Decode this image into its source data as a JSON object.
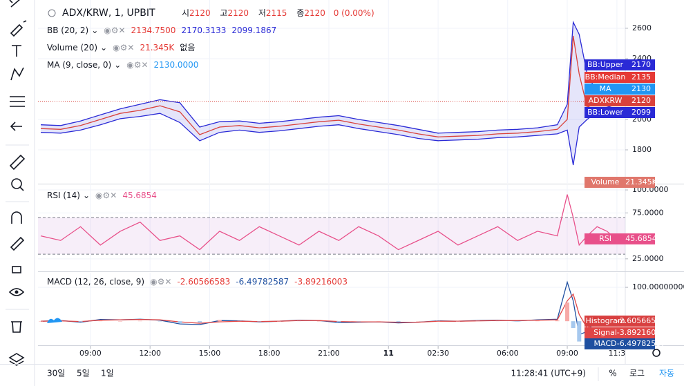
{
  "header": {
    "symbol": "ADX/KRW, 1, UPBIT",
    "ohlc": [
      {
        "label": "시",
        "value": "2120"
      },
      {
        "label": "고",
        "value": "2120"
      },
      {
        "label": "저",
        "value": "2115"
      },
      {
        "label": "종",
        "value": "2120"
      }
    ],
    "change": "0 (0.00%)"
  },
  "legends": {
    "bb": {
      "name": "BB (20, 2)",
      "values": [
        "2134.7500",
        "2170.3133",
        "2099.1867"
      ]
    },
    "volume": {
      "name": "Volume (20)",
      "values": [
        "21.345K",
        "없음"
      ]
    },
    "ma": {
      "name": "MA (9, close, 0)",
      "values": [
        "2130.0000"
      ]
    },
    "rsi": {
      "name": "RSI (14)",
      "values": [
        "45.6854"
      ]
    },
    "macd": {
      "name": "MACD (12, 26, close, 9)",
      "values": [
        "-2.60566583",
        "-6.49782587",
        "-3.89216003"
      ]
    }
  },
  "price_labels": [
    {
      "name": "BB:Median",
      "value": "2135",
      "color": "#e53935"
    },
    {
      "name": "MA",
      "value": "2130",
      "color": "#2196f3"
    },
    {
      "name": "Volume",
      "value": "21.345K",
      "color": "#e0776c"
    }
  ],
  "bottom_bar": {
    "ranges": [
      "30일",
      "5일",
      "1일"
    ],
    "clock": "11:28:41 (UTC+9)",
    "options": [
      "%",
      "로그",
      "자동"
    ]
  },
  "chart_data": [
    {
      "type": "line",
      "x": [
        6.5,
        7.5,
        8.5,
        9.5,
        10.5,
        11.5,
        12.5,
        13.5,
        14.5,
        15.5,
        16.5,
        17.5,
        18.5,
        19.5,
        20.5,
        21.5,
        22.5,
        23.5,
        24.5,
        25.5,
        26.5,
        27.5,
        28.5,
        29.5,
        30.5,
        31.5,
        32.5,
        33.0,
        33.3,
        33.6,
        34.0,
        34.5,
        35.0,
        35.5
      ],
      "series": [
        {
          "name": "BB:Upper",
          "color": "#2a2ad6",
          "values": [
            1965,
            1960,
            1990,
            2030,
            2070,
            2100,
            2130,
            2110,
            1950,
            1985,
            1990,
            1975,
            1985,
            2000,
            2015,
            2025,
            2000,
            1980,
            1960,
            1935,
            1910,
            1915,
            1920,
            1930,
            1935,
            1945,
            1965,
            2100,
            2640,
            2560,
            2300,
            2180,
            2170,
            2170
          ]
        },
        {
          "name": "BB:Lower",
          "color": "#2a2ad6",
          "values": [
            1915,
            1910,
            1930,
            1965,
            2005,
            2020,
            2040,
            1980,
            1860,
            1915,
            1930,
            1915,
            1925,
            1940,
            1955,
            1965,
            1940,
            1920,
            1900,
            1875,
            1860,
            1865,
            1870,
            1880,
            1885,
            1895,
            1905,
            1930,
            1700,
            1950,
            2000,
            2050,
            2080,
            2099
          ]
        },
        {
          "name": "ADXKRW",
          "color": "#d9413b",
          "values": [
            1940,
            1935,
            1960,
            2000,
            2040,
            2060,
            2090,
            2050,
            1900,
            1950,
            1960,
            1945,
            1955,
            1970,
            1985,
            1995,
            1970,
            1950,
            1930,
            1905,
            1885,
            1890,
            1895,
            1905,
            1910,
            1920,
            1935,
            2000,
            2550,
            2300,
            2080,
            2110,
            2100,
            2120
          ]
        }
      ],
      "fill_between": [
        0,
        1
      ],
      "price_line": 2,
      "xlim": [
        6.36,
        35.92
      ],
      "ylim": [
        1582,
        2786
      ],
      "yticks": [
        1800,
        2000,
        2400,
        2600
      ]
    },
    {
      "type": "line",
      "x": [
        6.5,
        7.5,
        8.5,
        9.5,
        10.5,
        11.5,
        12.5,
        13.5,
        14.5,
        15.5,
        16.5,
        17.5,
        18.5,
        19.5,
        20.5,
        21.5,
        22.5,
        23.5,
        24.5,
        25.5,
        26.5,
        27.5,
        28.5,
        29.5,
        30.5,
        31.5,
        32.5,
        33.0,
        33.3,
        33.6,
        34.0,
        34.5,
        35.0,
        35.5
      ],
      "series": [
        {
          "name": "RSI",
          "color": "#e8508a",
          "values": [
            50,
            45,
            60,
            40,
            55,
            65,
            45,
            50,
            35,
            55,
            45,
            60,
            50,
            40,
            55,
            45,
            60,
            50,
            35,
            45,
            55,
            40,
            50,
            60,
            45,
            55,
            50,
            95,
            70,
            40,
            50,
            60,
            55,
            45.6854
          ]
        }
      ],
      "band": [
        30,
        70
      ],
      "xlim": [
        6.36,
        35.92
      ],
      "ylim": [
        12.1,
        105.3
      ],
      "yticks": [
        {
          "value": 25,
          "label": "25.0000"
        },
        {
          "value": 75,
          "label": "75.0000"
        },
        {
          "value": 100,
          "label": "100.0000"
        }
      ]
    },
    {
      "type": "line",
      "x": [
        6.5,
        7.5,
        8.5,
        9.5,
        10.5,
        11.5,
        12.5,
        13.5,
        14.5,
        15.5,
        16.5,
        17.5,
        18.5,
        19.5,
        20.5,
        21.5,
        22.5,
        23.5,
        24.5,
        25.5,
        26.5,
        27.5,
        28.5,
        29.5,
        30.5,
        31.5,
        32.5,
        33.0,
        33.3,
        33.6,
        34.0,
        34.5,
        35.0,
        35.5
      ],
      "series": [
        {
          "name": "MACD",
          "color": "#1e4fa0",
          "values": [
            0,
            2,
            -3,
            5,
            4,
            6,
            3,
            -8,
            -10,
            2,
            1,
            -2,
            0,
            3,
            2,
            -4,
            -3,
            -2,
            -5,
            -3,
            1,
            0,
            2,
            3,
            1,
            4,
            6,
            115,
            60,
            -40,
            -30,
            5,
            10,
            -6.49782587
          ]
        },
        {
          "name": "Signal",
          "color": "#e04646",
          "values": [
            0,
            1,
            -1,
            3,
            4,
            5,
            4,
            -2,
            -6,
            -2,
            0,
            -1,
            0,
            2,
            2,
            -1,
            -2,
            -2,
            -3,
            -3,
            0,
            0,
            1,
            2,
            2,
            3,
            4,
            60,
            80,
            20,
            -20,
            -5,
            3,
            -3.89216003
          ]
        },
        {
          "name": "Histogram",
          "color": "#d84040",
          "type": "bar",
          "values": [
            0,
            1,
            -2,
            2,
            0,
            1,
            -1,
            -6,
            -4,
            4,
            1,
            -1,
            0,
            1,
            0,
            -3,
            -1,
            0,
            -2,
            0,
            1,
            0,
            1,
            1,
            -1,
            1,
            2,
            55,
            -20,
            -60,
            -10,
            10,
            7,
            -2.60566583
          ]
        }
      ],
      "xlim": [
        6.36,
        35.92
      ],
      "ylim": [
        -71,
        143
      ],
      "yticks": [
        {
          "value": 100,
          "label": "100.00000000"
        }
      ],
      "xticks": [
        {
          "value": 9,
          "label": "09:00"
        },
        {
          "value": 12,
          "label": "12:00"
        },
        {
          "value": 15,
          "label": "15:00"
        },
        {
          "value": 18,
          "label": "18:00"
        },
        {
          "value": 21,
          "label": "21:00"
        },
        {
          "value": 24,
          "label": "11"
        },
        {
          "value": 26.5,
          "label": "02:30"
        },
        {
          "value": 30,
          "label": "06:00"
        },
        {
          "value": 33,
          "label": "09:00"
        },
        {
          "value": 35.5,
          "label": "11:3"
        }
      ]
    }
  ]
}
